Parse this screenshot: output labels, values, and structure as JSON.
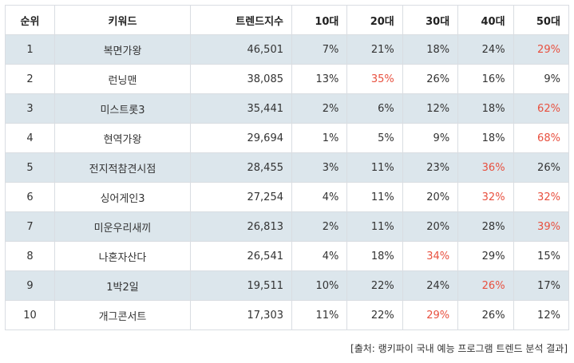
{
  "headers": [
    "순위",
    "키워드",
    "트렌드지수",
    "10대",
    "20대",
    "30대",
    "40대",
    "50대"
  ],
  "highlight_color": "#e8503f",
  "rows": [
    {
      "rank": "1",
      "keyword": "복면가왕",
      "index": "46,501",
      "ages": [
        "7%",
        "21%",
        "18%",
        "24%",
        "29%"
      ],
      "highlight": [
        false,
        false,
        false,
        false,
        true
      ]
    },
    {
      "rank": "2",
      "keyword": "런닝맨",
      "index": "38,085",
      "ages": [
        "13%",
        "35%",
        "26%",
        "16%",
        "9%"
      ],
      "highlight": [
        false,
        true,
        false,
        false,
        false
      ]
    },
    {
      "rank": "3",
      "keyword": "미스트롯3",
      "index": "35,441",
      "ages": [
        "2%",
        "6%",
        "12%",
        "18%",
        "62%"
      ],
      "highlight": [
        false,
        false,
        false,
        false,
        true
      ]
    },
    {
      "rank": "4",
      "keyword": "현역가왕",
      "index": "29,694",
      "ages": [
        "1%",
        "5%",
        "9%",
        "18%",
        "68%"
      ],
      "highlight": [
        false,
        false,
        false,
        false,
        true
      ]
    },
    {
      "rank": "5",
      "keyword": "전지적참견시점",
      "index": "28,455",
      "ages": [
        "3%",
        "11%",
        "23%",
        "36%",
        "26%"
      ],
      "highlight": [
        false,
        false,
        false,
        true,
        false
      ]
    },
    {
      "rank": "6",
      "keyword": "싱어게인3",
      "index": "27,254",
      "ages": [
        "4%",
        "11%",
        "20%",
        "32%",
        "32%"
      ],
      "highlight": [
        false,
        false,
        false,
        true,
        true
      ]
    },
    {
      "rank": "7",
      "keyword": "미운우리새끼",
      "index": "26,813",
      "ages": [
        "2%",
        "11%",
        "20%",
        "28%",
        "39%"
      ],
      "highlight": [
        false,
        false,
        false,
        false,
        true
      ]
    },
    {
      "rank": "8",
      "keyword": "나혼자산다",
      "index": "26,541",
      "ages": [
        "4%",
        "18%",
        "34%",
        "29%",
        "15%"
      ],
      "highlight": [
        false,
        false,
        true,
        false,
        false
      ]
    },
    {
      "rank": "9",
      "keyword": "1박2일",
      "index": "19,511",
      "ages": [
        "10%",
        "22%",
        "24%",
        "26%",
        "17%"
      ],
      "highlight": [
        false,
        false,
        false,
        true,
        false
      ]
    },
    {
      "rank": "10",
      "keyword": "개그콘서트",
      "index": "17,303",
      "ages": [
        "11%",
        "22%",
        "29%",
        "26%",
        "12%"
      ],
      "highlight": [
        false,
        false,
        true,
        false,
        false
      ]
    }
  ],
  "caption": "[출처: 랭키파이 국내 예능 프로그램 트렌드 분석 결과]"
}
